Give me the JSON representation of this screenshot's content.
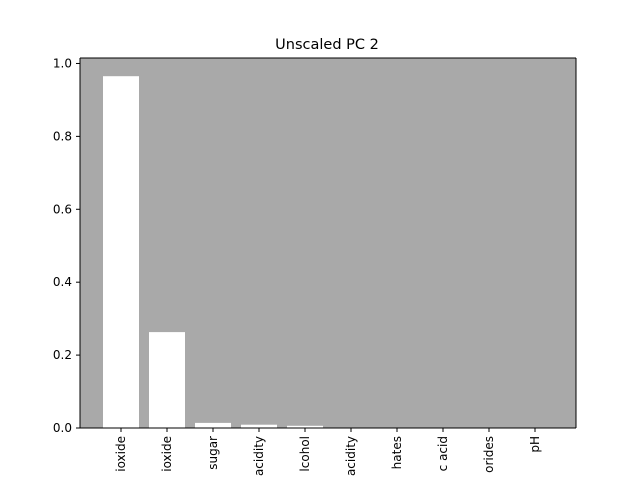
{
  "chart_data": {
    "type": "bar",
    "title": "Unscaled PC 2",
    "xlabel": "",
    "ylabel": "",
    "categories": [
      "ioxide",
      "ioxide",
      "sugar",
      "acidity",
      "lcohol",
      "acidity",
      "hates",
      "c acid",
      "orides",
      "pH"
    ],
    "values": [
      0.965,
      0.263,
      0.014,
      0.009,
      0.006,
      0.001,
      0.001,
      0.0005,
      0.0003,
      0.0002
    ],
    "ylim": [
      0,
      1.0
    ],
    "yticks": [
      "0.0",
      "0.2",
      "0.4",
      "0.6",
      "0.8",
      "1.0"
    ],
    "grid": false,
    "colors": {
      "plot_background": "#a9a9a9",
      "bar": "#ffffff",
      "axis": "#000000"
    }
  }
}
